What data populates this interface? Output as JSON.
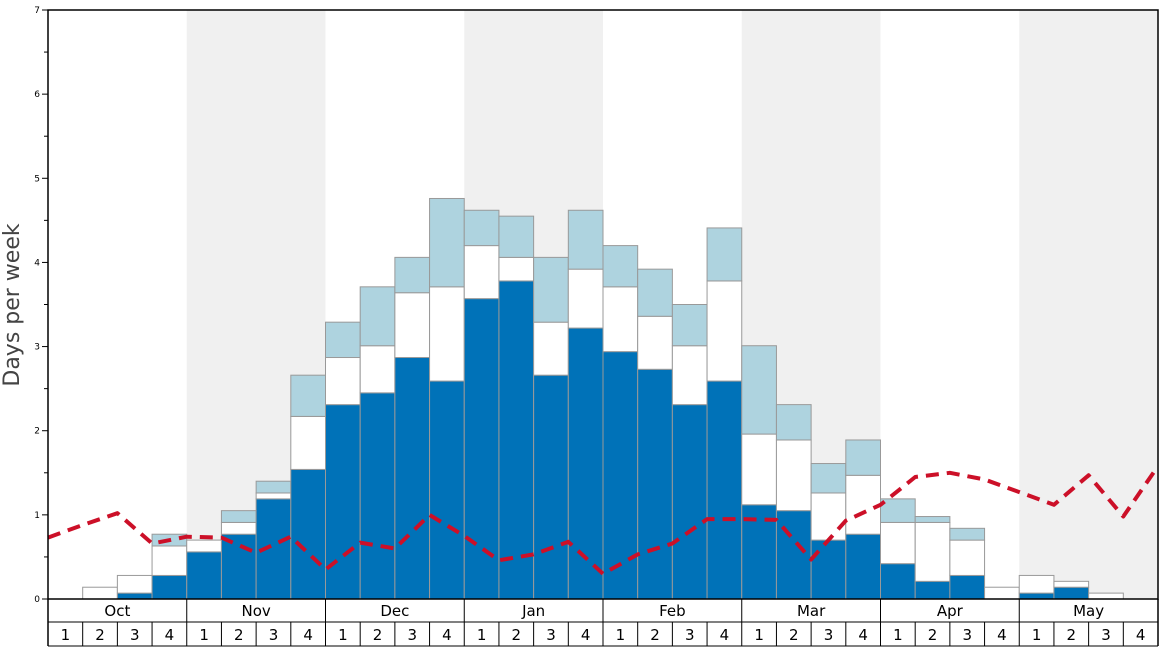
{
  "chart_data": {
    "type": "bar",
    "ylabel": "Days per week",
    "ylim": [
      0,
      7
    ],
    "yticks": [
      "0",
      "1",
      "2",
      "3",
      "4",
      "5",
      "6",
      "7"
    ],
    "months": [
      "Oct",
      "Nov",
      "Dec",
      "Jan",
      "Feb",
      "Mar",
      "Apr",
      "May"
    ],
    "weeks": [
      "1",
      "2",
      "3",
      "4"
    ],
    "stack_order": [
      "dark",
      "white",
      "light"
    ],
    "colors": {
      "dark": "#0072b8",
      "white": "#ffffff",
      "light": "#aed3df",
      "line": "#cc1028",
      "shade": "#f0f0f0"
    },
    "shaded_months": [
      "Nov",
      "Jan",
      "Mar",
      "May"
    ],
    "series": [
      {
        "key": "dark",
        "values": [
          0,
          0,
          0.07,
          0.28,
          0.56,
          0.77,
          1.19,
          1.54,
          2.31,
          2.45,
          2.87,
          2.59,
          3.57,
          3.78,
          2.66,
          3.22,
          2.94,
          2.73,
          2.31,
          2.59,
          1.12,
          1.05,
          0.7,
          0.77,
          0.42,
          0.21,
          0.28,
          0,
          0.07,
          0.14,
          0,
          0
        ]
      },
      {
        "key": "white",
        "values": [
          0,
          0.14,
          0.21,
          0.35,
          0.14,
          0.14,
          0.07,
          0.63,
          0.56,
          0.56,
          0.77,
          1.12,
          0.63,
          0.28,
          0.63,
          0.7,
          0.77,
          0.63,
          0.7,
          1.19,
          0.84,
          0.84,
          0.56,
          0.7,
          0.49,
          0.7,
          0.42,
          0.14,
          0.21,
          0.07,
          0.07,
          0
        ]
      },
      {
        "key": "light",
        "values": [
          0,
          0,
          0,
          0.14,
          0,
          0.14,
          0.14,
          0.49,
          0.42,
          0.7,
          0.42,
          1.05,
          0.42,
          0.49,
          0.77,
          0.7,
          0.49,
          0.56,
          0.49,
          0.63,
          1.05,
          0.42,
          0.35,
          0.42,
          0.28,
          0.07,
          0.14,
          0,
          0,
          0,
          0,
          0
        ]
      }
    ],
    "line": {
      "style": "dashed",
      "values": [
        0.73,
        0.88,
        1.02,
        0.66,
        0.74,
        0.73,
        0.55,
        0.74,
        0.35,
        0.67,
        0.6,
        1.0,
        0.75,
        0.46,
        0.53,
        0.68,
        0.3,
        0.53,
        0.66,
        0.95,
        0.95,
        0.94,
        0.47,
        0.93,
        1.12,
        1.45,
        1.5,
        1.42,
        1.27,
        1.12,
        1.47,
        0.98,
        1.58
      ]
    }
  }
}
